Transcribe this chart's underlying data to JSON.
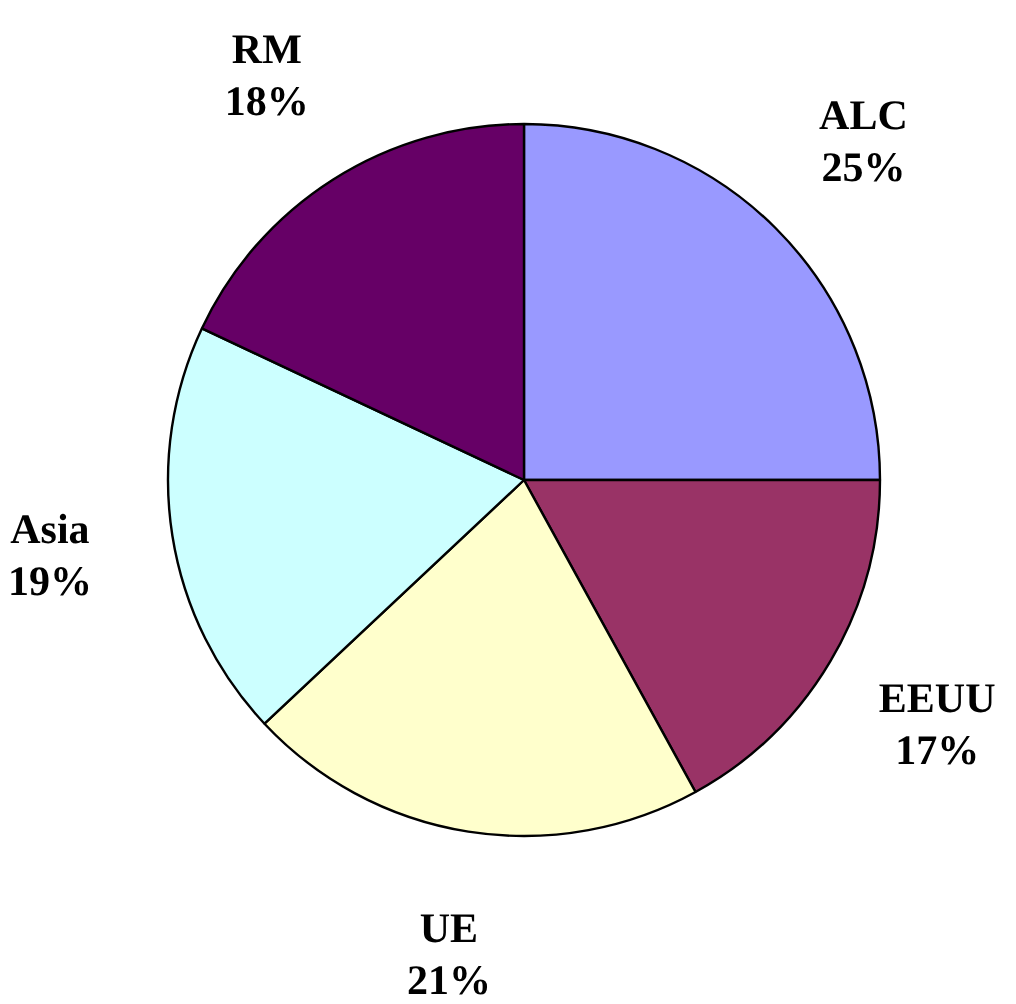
{
  "chart_data": {
    "type": "pie",
    "categories": [
      "ALC",
      "EEUU",
      "UE",
      "Asia",
      "RM"
    ],
    "values": [
      25,
      17,
      21,
      19,
      18
    ],
    "colors": [
      "#9999ff",
      "#993366",
      "#ffffcc",
      "#ccffff",
      "#660066"
    ],
    "value_labels": [
      "25%",
      "17%",
      "21%",
      "19%",
      "18%"
    ]
  }
}
